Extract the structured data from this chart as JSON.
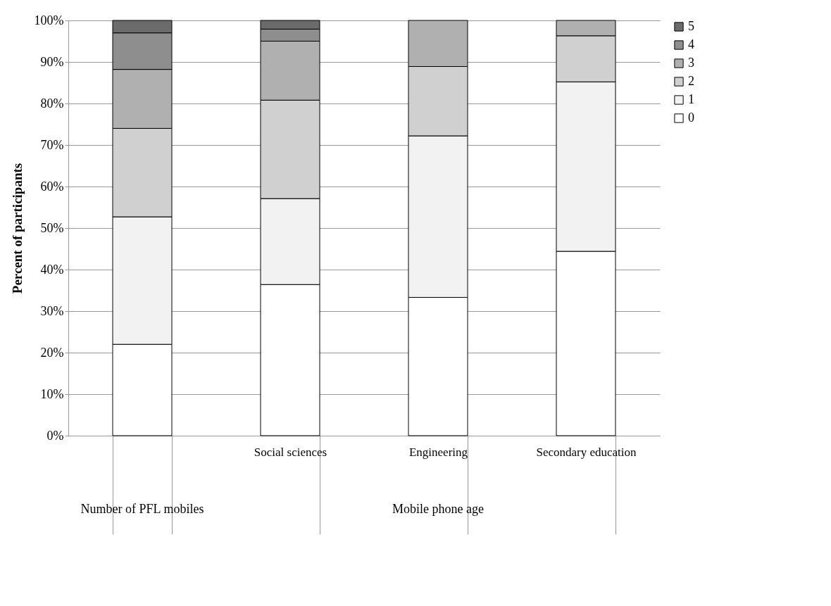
{
  "chart_data": {
    "type": "bar",
    "stacked": true,
    "ylabel": "Percent of participants",
    "categories": [
      null,
      "Social sciences",
      "Engineering",
      "Secondary education"
    ],
    "series": [
      {
        "name": "0",
        "color": "#ffffff",
        "values": [
          22.0,
          36.4,
          33.3,
          44.4
        ]
      },
      {
        "name": "1",
        "color": "#f2f2f2",
        "values": [
          30.7,
          20.7,
          38.9,
          40.8
        ]
      },
      {
        "name": "2",
        "color": "#d0d0d0",
        "values": [
          21.3,
          23.7,
          16.7,
          11.1
        ]
      },
      {
        "name": "3",
        "color": "#b0b0b0",
        "values": [
          14.2,
          14.2,
          11.1,
          3.7
        ]
      },
      {
        "name": "4",
        "color": "#8e8e8e",
        "values": [
          8.8,
          2.9,
          0,
          0
        ]
      },
      {
        "name": "5",
        "color": "#6b6b6b",
        "values": [
          3.0,
          2.1,
          0,
          0
        ]
      }
    ],
    "ylim": [
      0,
      100
    ],
    "yticks": [
      {
        "value": 0,
        "label": "0%"
      },
      {
        "value": 10,
        "label": "10%"
      },
      {
        "value": 20,
        "label": "20%"
      },
      {
        "value": 30,
        "label": "30%"
      },
      {
        "value": 40,
        "label": "40%"
      },
      {
        "value": 50,
        "label": "50%"
      },
      {
        "value": 60,
        "label": "60%"
      },
      {
        "value": 70,
        "label": "70%"
      },
      {
        "value": 80,
        "label": "80%"
      },
      {
        "value": 90,
        "label": "90%"
      },
      {
        "value": 100,
        "label": "100%"
      }
    ],
    "grid": "y",
    "legend": "right",
    "annotations": [
      "Number of PFL mobiles",
      "Mobile phone age"
    ]
  }
}
